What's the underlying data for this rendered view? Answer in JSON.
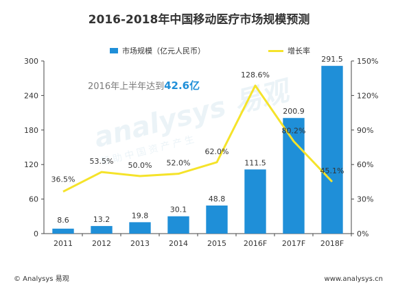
{
  "title": "2016-2018年中国移动医疗市场规模预测",
  "legend": {
    "bar_label": "市场规模（亿元人民币）",
    "line_label": "增长率"
  },
  "annotation": {
    "prefix": "2016年上半年达到",
    "value": "42.6亿"
  },
  "footer": {
    "left": "© Analysys 易观",
    "right": "www.analysys.cn"
  },
  "watermark": {
    "main": "analysys 易观",
    "sub": "帮助中国资产产生"
  },
  "colors": {
    "bar": "#1f8fd8",
    "line": "#f5e32a",
    "axis": "#444444"
  },
  "chart_data": {
    "type": "bar",
    "title": "2016-2018年中国移动医疗市场规模预测",
    "categories": [
      "2011",
      "2012",
      "2013",
      "2014",
      "2015",
      "2016F",
      "2017F",
      "2018F"
    ],
    "series": [
      {
        "name": "市场规模（亿元人民币）",
        "type": "bar",
        "axis": "left",
        "values": [
          8.6,
          13.2,
          19.8,
          30.1,
          48.8,
          111.5,
          200.9,
          291.5
        ],
        "labels": [
          "8.6",
          "13.2",
          "19.8",
          "30.1",
          "48.8",
          "111.5",
          "200.9",
          "291.5"
        ]
      },
      {
        "name": "增长率",
        "type": "line",
        "axis": "right",
        "values": [
          36.5,
          53.5,
          50.0,
          52.0,
          62.0,
          128.6,
          80.2,
          45.1
        ],
        "labels": [
          "36.5%",
          "53.5%",
          "50.0%",
          "52.0%",
          "62.0%",
          "128.6%",
          "80.2%",
          "45.1%"
        ]
      }
    ],
    "y_left": {
      "min": 0,
      "max": 300,
      "ticks": [
        "0",
        "60",
        "120",
        "180",
        "240",
        "300"
      ]
    },
    "y_right": {
      "min": 0,
      "max": 150,
      "ticks": [
        "0%",
        "30%",
        "60%",
        "90%",
        "120%",
        "150%"
      ]
    },
    "grid": false,
    "legend_position": "top"
  }
}
